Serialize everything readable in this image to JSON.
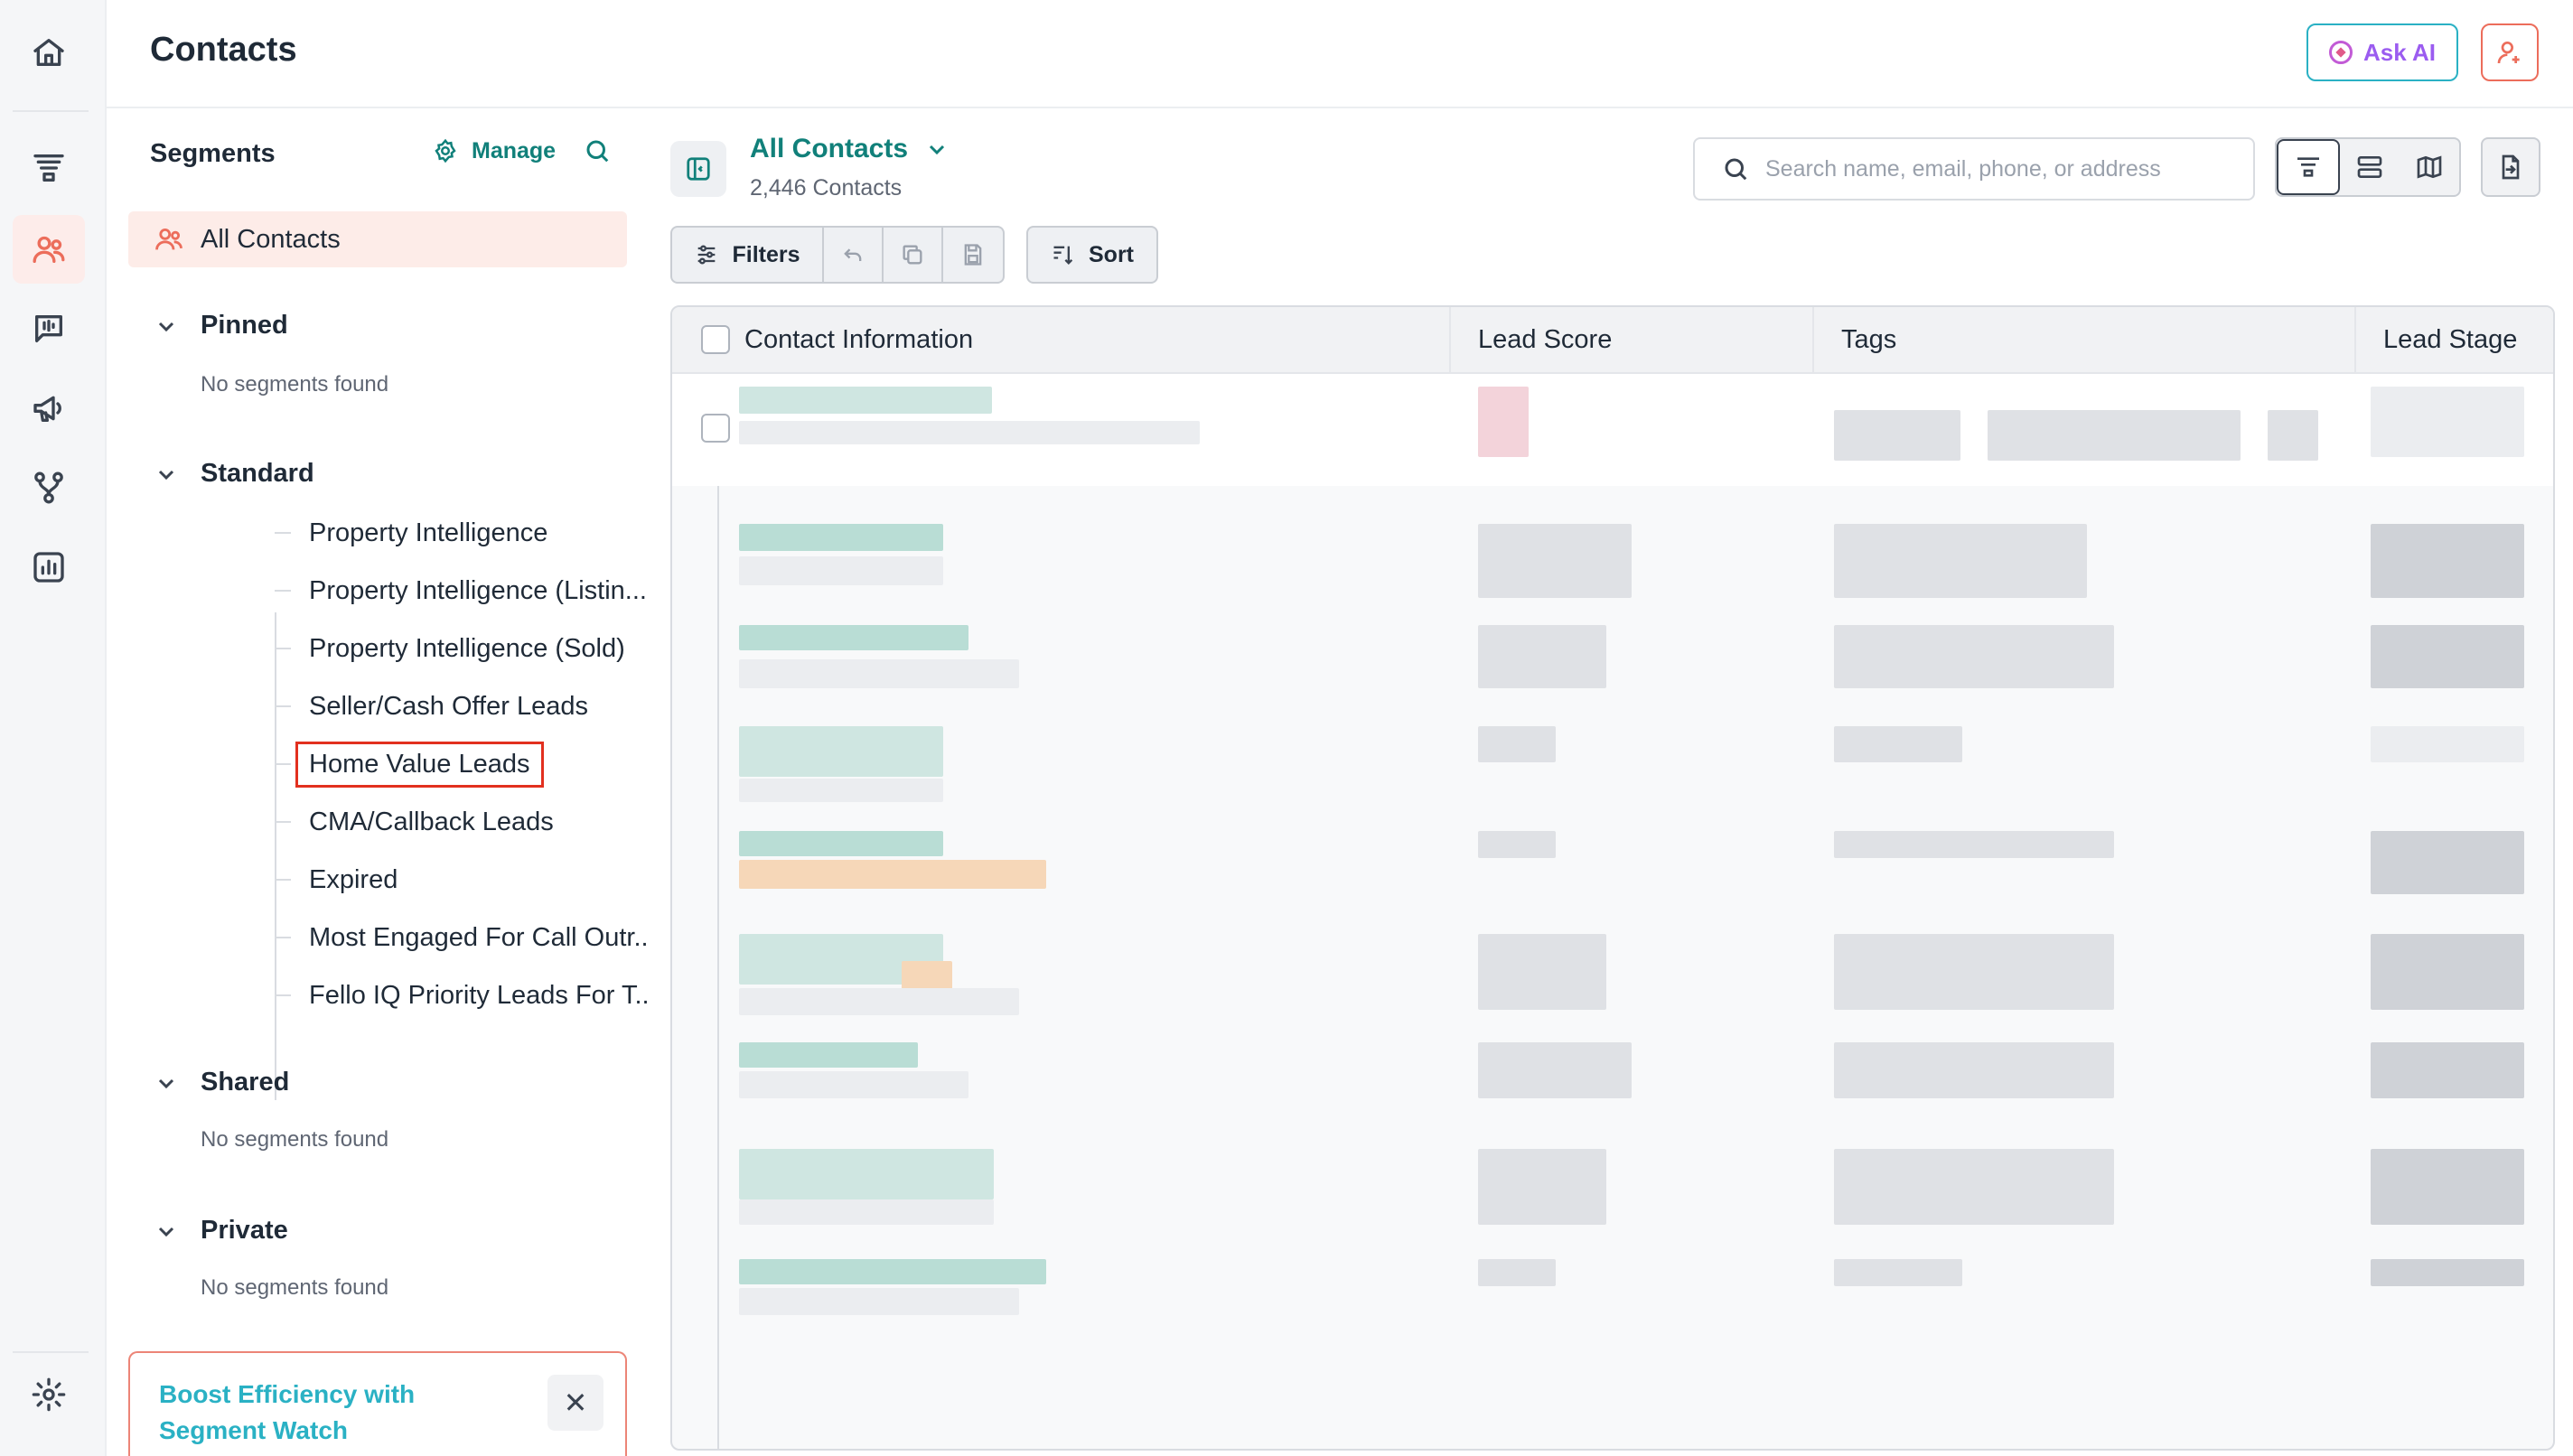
{
  "header": {
    "title": "Contacts",
    "ask_ai_label": "Ask AI"
  },
  "segments": {
    "heading": "Segments",
    "manage_label": "Manage",
    "all_contacts_label": "All Contacts",
    "groups": {
      "pinned": {
        "label": "Pinned",
        "empty": "No segments found"
      },
      "standard": {
        "label": "Standard"
      },
      "shared": {
        "label": "Shared",
        "empty": "No segments found"
      },
      "private": {
        "label": "Private",
        "empty": "No segments found"
      }
    },
    "standard_items": [
      "Property Intelligence",
      "Property Intelligence (Listin...",
      "Property Intelligence (Sold)",
      "Seller/Cash Offer Leads",
      "Home Value Leads",
      "CMA/Callback Leads",
      "Expired",
      "Most Engaged For Call Outr...",
      "Fello IQ Priority Leads For T..."
    ],
    "highlighted_item": "Home Value Leads",
    "promo": {
      "text": "Boost Efficiency with Segment Watch",
      "close_icon": "close-icon"
    }
  },
  "main": {
    "view_title": "All Contacts",
    "view_count": "2,446 Contacts",
    "search_placeholder": "Search name, email, phone, or address",
    "filters_label": "Filters",
    "sort_label": "Sort",
    "table": {
      "columns": [
        "Contact Information",
        "Lead Score",
        "Tags",
        "Lead Stage"
      ]
    }
  },
  "colors": {
    "accent_teal": "#11807a",
    "accent_coral": "#ec6d5b",
    "highlight_red": "#e2301f",
    "ask_ai_border": "#2ab1c4"
  },
  "icons": {
    "rail": [
      "home-icon",
      "funnel-icon",
      "contacts-icon",
      "voice-chat-icon",
      "megaphone-icon",
      "workflow-icon",
      "reports-icon",
      "settings-icon"
    ]
  }
}
